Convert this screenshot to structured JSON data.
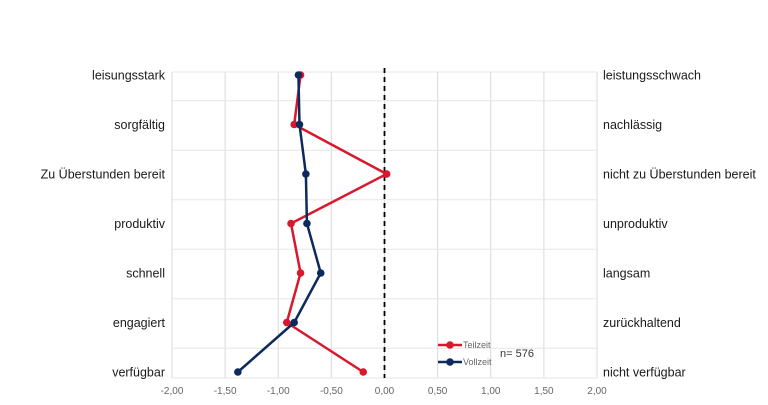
{
  "chart_data": {
    "type": "line",
    "orientation": "vertical-profile",
    "left_labels": [
      "leisungsstark",
      "sorgfältig",
      "Zu Überstunden bereit",
      "produktiv",
      "schnell",
      "engagiert",
      "verfügbar"
    ],
    "right_labels": [
      "leistungsschwach",
      "nachlässig",
      "nicht zu Überstunden bereit",
      "unproduktiv",
      "langsam",
      "zurückhaltend",
      "nicht verfügbar"
    ],
    "xlim": [
      -2.0,
      2.0
    ],
    "x_ticks": [
      "-2,00",
      "-1,50",
      "-1,00",
      "-0,50",
      "0,00",
      "0,50",
      "1,00",
      "1,50",
      "2,00"
    ],
    "x_tick_values": [
      -2.0,
      -1.5,
      -1.0,
      -0.5,
      0.0,
      0.5,
      1.0,
      1.5,
      2.0
    ],
    "grid": true,
    "reference_line": {
      "x": 0.0,
      "style": "dashed"
    },
    "series": [
      {
        "name": "Teilzeit",
        "color": "#d9182d",
        "values": [
          -0.79,
          -0.85,
          0.02,
          -0.88,
          -0.79,
          -0.92,
          -0.2
        ]
      },
      {
        "name": "Vollzeit",
        "color": "#0d2a5c",
        "values": [
          -0.81,
          -0.8,
          -0.74,
          -0.73,
          -0.6,
          -0.85,
          -1.38
        ]
      }
    ],
    "legend_position": "bottom-right",
    "annotation": "n= 576"
  }
}
